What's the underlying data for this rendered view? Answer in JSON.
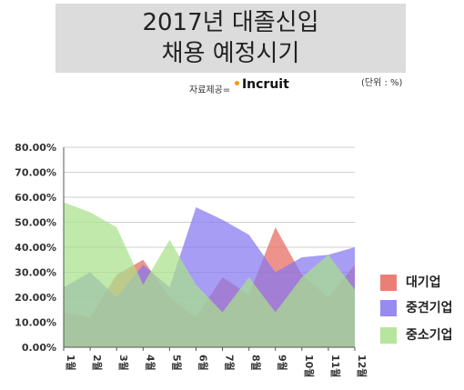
{
  "title_lines": [
    "2017년 대졸신입",
    "채용 예정시기"
  ],
  "source_label": "자료제공=",
  "source_brand": "Incruit",
  "unit_label": "(단위 : %)",
  "chart_data": {
    "type": "area",
    "title": "2017년 대졸신입 채용 예정시기",
    "xlabel": "",
    "ylabel": "",
    "categories": [
      "1월",
      "2월",
      "3월",
      "4월",
      "5월",
      "6월",
      "7월",
      "8월",
      "9월",
      "10월",
      "11월",
      "12월"
    ],
    "ylim": [
      0,
      0.8
    ],
    "yticks": [
      "0.00%",
      "10.00%",
      "20.00%",
      "30.00%",
      "40.00%",
      "50.00%",
      "60.00%",
      "70.00%",
      "80.00%"
    ],
    "grid": true,
    "legend_position": "right",
    "series": [
      {
        "name": "대기업",
        "color": "#e8695e",
        "values": [
          0.14,
          0.12,
          0.29,
          0.35,
          0.2,
          0.12,
          0.28,
          0.21,
          0.48,
          0.29,
          0.2,
          0.33
        ]
      },
      {
        "name": "중견기업",
        "color": "#8577f0",
        "values": [
          0.24,
          0.3,
          0.2,
          0.33,
          0.24,
          0.56,
          0.51,
          0.45,
          0.3,
          0.36,
          0.37,
          0.4
        ]
      },
      {
        "name": "중소기업",
        "color": "#a9e08c",
        "values": [
          0.58,
          0.54,
          0.48,
          0.25,
          0.43,
          0.25,
          0.14,
          0.28,
          0.14,
          0.28,
          0.37,
          0.23
        ]
      }
    ]
  }
}
